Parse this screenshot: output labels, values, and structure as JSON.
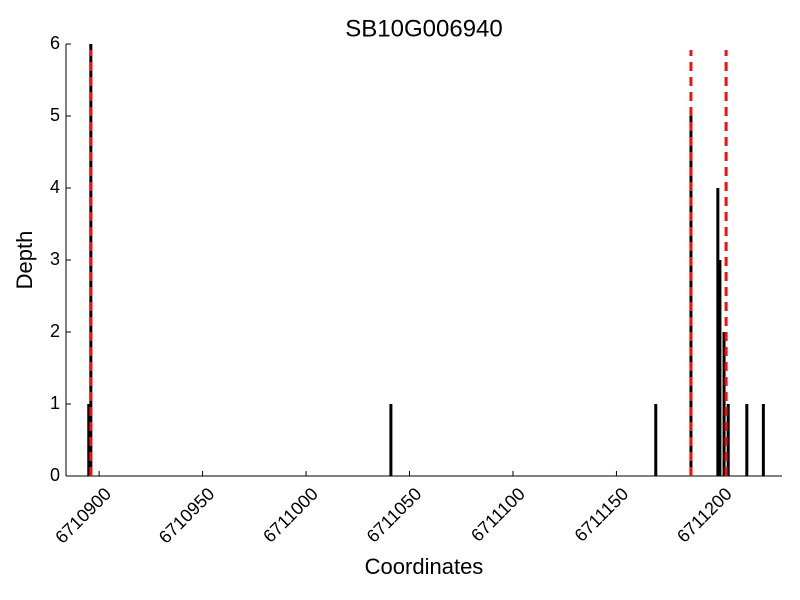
{
  "chart_data": {
    "type": "bar",
    "title": "SB10G006940",
    "x_label": "Coordinates",
    "y_label": "Depth",
    "x": [
      6710895,
      6710896,
      6711041,
      6711169,
      6711186,
      6711199,
      6711200,
      6711202,
      6711204,
      6711213,
      6711221
    ],
    "values": [
      1,
      6,
      1,
      1,
      5,
      4,
      3,
      2,
      1,
      1,
      1
    ],
    "color": "#000000",
    "vlines": {
      "x": [
        6710896,
        6711186,
        6711203
      ],
      "color": "#ee1111"
    },
    "xlim": [
      6710884,
      6711230
    ],
    "xticks": [
      6710900,
      6710950,
      6711000,
      6711050,
      6711100,
      6711150,
      6711200
    ],
    "ylim": [
      0,
      6
    ],
    "yticks": [
      0,
      1,
      2,
      3,
      4,
      5,
      6
    ]
  }
}
